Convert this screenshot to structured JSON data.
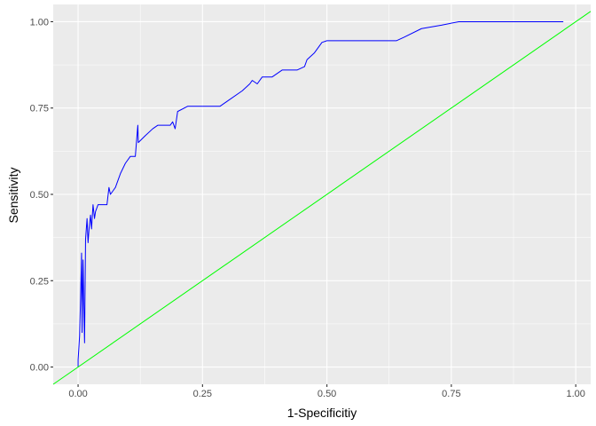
{
  "chart_data": {
    "type": "line",
    "title": "",
    "xlabel": "1-Specificitiy",
    "ylabel": "Sensitivity",
    "xlim": [
      -0.05,
      1.03
    ],
    "ylim": [
      -0.05,
      1.05
    ],
    "x_ticks": [
      0.0,
      0.25,
      0.5,
      0.75,
      1.0
    ],
    "x_tick_labels": [
      "0.00",
      "0.25",
      "0.50",
      "0.75",
      "1.00"
    ],
    "y_ticks": [
      0.0,
      0.25,
      0.5,
      0.75,
      1.0
    ],
    "y_tick_labels": [
      "0.00",
      "0.25",
      "0.50",
      "0.75",
      "1.00"
    ],
    "grid": true,
    "legend": "none",
    "colors": {
      "panel": "#ebebeb",
      "grid": "#ffffff",
      "roc": "#0000ff",
      "reference": "#00ff00"
    },
    "series": [
      {
        "color": "#0000ff",
        "points": [
          [
            0.0,
            0.0
          ],
          [
            0.0,
            0.02
          ],
          [
            0.003,
            0.09
          ],
          [
            0.005,
            0.2
          ],
          [
            0.007,
            0.33
          ],
          [
            0.008,
            0.1
          ],
          [
            0.01,
            0.31
          ],
          [
            0.012,
            0.14
          ],
          [
            0.013,
            0.07
          ],
          [
            0.015,
            0.37
          ],
          [
            0.018,
            0.43
          ],
          [
            0.02,
            0.36
          ],
          [
            0.022,
            0.4
          ],
          [
            0.025,
            0.44
          ],
          [
            0.027,
            0.4
          ],
          [
            0.03,
            0.47
          ],
          [
            0.033,
            0.43
          ],
          [
            0.035,
            0.45
          ],
          [
            0.04,
            0.47
          ],
          [
            0.058,
            0.47
          ],
          [
            0.062,
            0.52
          ],
          [
            0.065,
            0.5
          ],
          [
            0.075,
            0.52
          ],
          [
            0.085,
            0.56
          ],
          [
            0.095,
            0.59
          ],
          [
            0.105,
            0.61
          ],
          [
            0.115,
            0.61
          ],
          [
            0.12,
            0.7
          ],
          [
            0.121,
            0.65
          ],
          [
            0.135,
            0.67
          ],
          [
            0.15,
            0.69
          ],
          [
            0.16,
            0.7
          ],
          [
            0.185,
            0.7
          ],
          [
            0.19,
            0.71
          ],
          [
            0.195,
            0.69
          ],
          [
            0.2,
            0.74
          ],
          [
            0.22,
            0.755
          ],
          [
            0.245,
            0.755
          ],
          [
            0.285,
            0.755
          ],
          [
            0.3,
            0.77
          ],
          [
            0.33,
            0.8
          ],
          [
            0.345,
            0.82
          ],
          [
            0.35,
            0.83
          ],
          [
            0.36,
            0.82
          ],
          [
            0.37,
            0.84
          ],
          [
            0.39,
            0.84
          ],
          [
            0.41,
            0.86
          ],
          [
            0.44,
            0.86
          ],
          [
            0.455,
            0.87
          ],
          [
            0.46,
            0.89
          ],
          [
            0.475,
            0.91
          ],
          [
            0.49,
            0.94
          ],
          [
            0.5,
            0.945
          ],
          [
            0.64,
            0.945
          ],
          [
            0.655,
            0.955
          ],
          [
            0.69,
            0.98
          ],
          [
            0.73,
            0.99
          ],
          [
            0.765,
            1.0
          ],
          [
            0.975,
            1.0
          ]
        ]
      },
      {
        "color": "#00ff00",
        "points": [
          [
            -0.05,
            -0.05
          ],
          [
            1.03,
            1.03
          ]
        ]
      }
    ]
  }
}
